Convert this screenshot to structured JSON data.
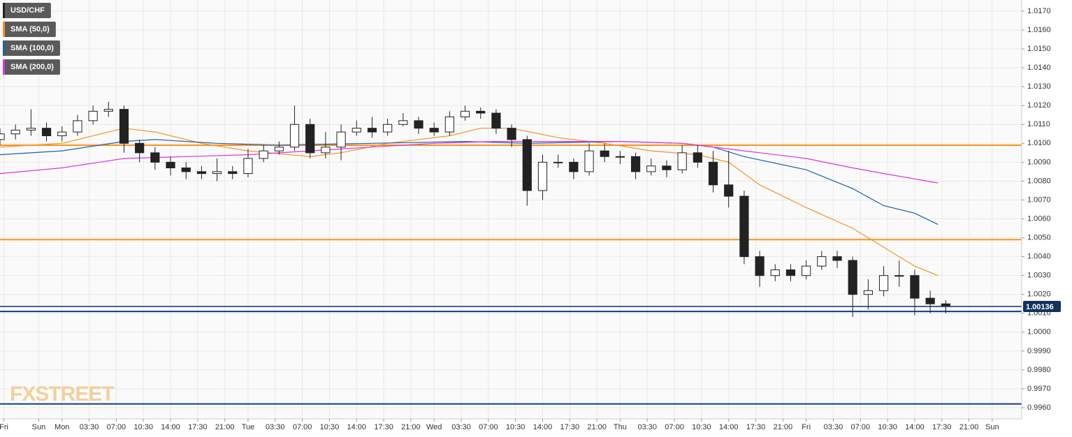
{
  "chart_data": {
    "type": "candlestick",
    "watermark": "FXSTREET",
    "xlim": [
      0,
      131.8
    ],
    "ylim": [
      0.99541,
      1.01759
    ],
    "grid": true,
    "xticks": [
      {
        "value": 0.5,
        "label": "Fri"
      },
      {
        "value": 5,
        "label": "Sun"
      },
      {
        "value": 8,
        "label": "Mon"
      },
      {
        "value": 11.5,
        "label": "03:30"
      },
      {
        "value": 15,
        "label": "07:00"
      },
      {
        "value": 18.5,
        "label": "10:30"
      },
      {
        "value": 22,
        "label": "14:00"
      },
      {
        "value": 25.5,
        "label": "17:30"
      },
      {
        "value": 29,
        "label": "21:00"
      },
      {
        "value": 32,
        "label": "Tue"
      },
      {
        "value": 35.5,
        "label": "03:30"
      },
      {
        "value": 39,
        "label": "07:00"
      },
      {
        "value": 42.5,
        "label": "10:30"
      },
      {
        "value": 46,
        "label": "14:00"
      },
      {
        "value": 49.5,
        "label": "17:30"
      },
      {
        "value": 53,
        "label": "21:00"
      },
      {
        "value": 56,
        "label": "Wed"
      },
      {
        "value": 59.5,
        "label": "03:30"
      },
      {
        "value": 63,
        "label": "07:00"
      },
      {
        "value": 66.5,
        "label": "10:30"
      },
      {
        "value": 70,
        "label": "14:00"
      },
      {
        "value": 73.5,
        "label": "17:30"
      },
      {
        "value": 77,
        "label": "21:00"
      },
      {
        "value": 80,
        "label": "Thu"
      },
      {
        "value": 83.5,
        "label": "03:30"
      },
      {
        "value": 87,
        "label": "07:00"
      },
      {
        "value": 90.5,
        "label": "10:30"
      },
      {
        "value": 94,
        "label": "14:00"
      },
      {
        "value": 97.5,
        "label": "17:30"
      },
      {
        "value": 101,
        "label": "21:00"
      },
      {
        "value": 104,
        "label": "Fri"
      },
      {
        "value": 107.5,
        "label": "03:30"
      },
      {
        "value": 111,
        "label": "07:00"
      },
      {
        "value": 114.5,
        "label": "10:30"
      },
      {
        "value": 118,
        "label": "14:00"
      },
      {
        "value": 121.5,
        "label": "17:30"
      },
      {
        "value": 125,
        "label": "21:00"
      },
      {
        "value": 128,
        "label": "Sun"
      }
    ],
    "yticks": [
      {
        "value": 0.996,
        "label": "0.9960"
      },
      {
        "value": 0.997,
        "label": "0.9970"
      },
      {
        "value": 0.998,
        "label": "0.9980"
      },
      {
        "value": 0.999,
        "label": "0.9990"
      },
      {
        "value": 1.0,
        "label": "1.0000"
      },
      {
        "value": 1.001,
        "label": "1.0010"
      },
      {
        "value": 1.002,
        "label": "1.0020"
      },
      {
        "value": 1.003,
        "label": "1.0030"
      },
      {
        "value": 1.004,
        "label": "1.0040"
      },
      {
        "value": 1.005,
        "label": "1.0050"
      },
      {
        "value": 1.006,
        "label": "1.0060"
      },
      {
        "value": 1.007,
        "label": "1.0070"
      },
      {
        "value": 1.008,
        "label": "1.0080"
      },
      {
        "value": 1.009,
        "label": "1.0090"
      },
      {
        "value": 1.01,
        "label": "1.0100"
      },
      {
        "value": 1.011,
        "label": "1.0110"
      },
      {
        "value": 1.012,
        "label": "1.0120"
      },
      {
        "value": 1.013,
        "label": "1.0130"
      },
      {
        "value": 1.014,
        "label": "1.0140"
      },
      {
        "value": 1.015,
        "label": "1.0150"
      },
      {
        "value": 1.016,
        "label": "1.0160"
      },
      {
        "value": 1.017,
        "label": "1.0170"
      }
    ],
    "candles": {
      "name": "USD/CHF",
      "color": "#222222",
      "up_color": "#ffffff",
      "x": [
        0,
        2,
        4,
        6,
        8,
        10,
        12,
        14,
        16,
        18,
        20,
        22,
        24,
        26,
        28,
        30,
        32,
        34,
        36,
        38,
        40,
        42,
        44,
        46,
        48,
        50,
        52,
        54,
        56,
        58,
        60,
        62,
        64,
        66,
        68,
        70,
        72,
        74,
        76,
        78,
        80,
        82,
        84,
        86,
        88,
        90,
        92,
        94,
        96,
        98,
        100,
        102,
        104,
        106,
        108,
        110,
        112,
        114,
        116,
        118,
        120,
        122
      ],
      "open": [
        1.0102,
        1.0105,
        1.0107,
        1.0108,
        1.0104,
        1.0106,
        1.0112,
        1.0117,
        1.0118,
        1.01,
        1.0095,
        1.009,
        1.0087,
        1.0085,
        1.0084,
        1.0085,
        1.0084,
        1.0092,
        1.0096,
        1.0098,
        1.011,
        1.0095,
        1.0098,
        1.0106,
        1.0108,
        1.0106,
        1.011,
        1.0112,
        1.0108,
        1.0106,
        1.0114,
        1.0117,
        1.0116,
        1.0108,
        1.0102,
        1.0075,
        1.009,
        1.009,
        1.0085,
        1.0096,
        1.0093,
        1.0093,
        1.0085,
        1.0088,
        1.0086,
        1.0095,
        1.009,
        1.0078,
        1.0072,
        1.004,
        1.003,
        1.0033,
        1.003,
        1.0035,
        1.004,
        1.0038,
        1.002,
        1.0022,
        1.003,
        1.003,
        1.0018,
        1.0015
      ],
      "high": [
        1.0108,
        1.011,
        1.0118,
        1.0111,
        1.0109,
        1.0115,
        1.012,
        1.0122,
        1.012,
        1.0102,
        1.0098,
        1.0093,
        1.009,
        1.0088,
        1.0092,
        1.0088,
        1.0097,
        1.0099,
        1.0101,
        1.012,
        1.0113,
        1.0106,
        1.011,
        1.0112,
        1.0114,
        1.0113,
        1.0116,
        1.0114,
        1.0111,
        1.0117,
        1.012,
        1.0119,
        1.0118,
        1.011,
        1.0104,
        1.0094,
        1.0094,
        1.0092,
        1.01,
        1.01,
        1.0096,
        1.0095,
        1.0092,
        1.0091,
        1.0099,
        1.0099,
        1.0096,
        1.0096,
        1.0075,
        1.0043,
        1.0036,
        1.0036,
        1.0038,
        1.0043,
        1.0043,
        1.004,
        1.0028,
        1.0035,
        1.0038,
        1.0033,
        1.0022,
        1.0017
      ],
      "low": [
        1.0099,
        1.0102,
        1.0104,
        1.0101,
        1.0101,
        1.0104,
        1.011,
        1.0114,
        1.0095,
        1.009,
        1.0086,
        1.0083,
        1.0081,
        1.0081,
        1.008,
        1.0081,
        1.0082,
        1.009,
        1.0094,
        1.0096,
        1.0092,
        1.0092,
        1.0091,
        1.0104,
        1.0103,
        1.0104,
        1.0109,
        1.0105,
        1.0104,
        1.0104,
        1.0112,
        1.0113,
        1.0105,
        1.0098,
        1.0067,
        1.007,
        1.0087,
        1.0081,
        1.0083,
        1.009,
        1.0089,
        1.0081,
        1.0083,
        1.0082,
        1.0084,
        1.0087,
        1.0074,
        1.0066,
        1.0036,
        1.0024,
        1.0027,
        1.0027,
        1.0028,
        1.0033,
        1.0034,
        1.0008,
        1.0012,
        1.0019,
        1.0024,
        1.0009,
        1.001,
        1.001
      ],
      "close": [
        1.0105,
        1.0107,
        1.0108,
        1.0104,
        1.0106,
        1.0112,
        1.0117,
        1.0118,
        1.01,
        1.0095,
        1.009,
        1.0087,
        1.0085,
        1.0084,
        1.0085,
        1.0084,
        1.0092,
        1.0096,
        1.0098,
        1.011,
        1.0095,
        1.0098,
        1.0106,
        1.0108,
        1.0106,
        1.011,
        1.0112,
        1.0108,
        1.0106,
        1.0114,
        1.0117,
        1.0116,
        1.0108,
        1.0102,
        1.0075,
        1.009,
        1.009,
        1.0085,
        1.0096,
        1.0093,
        1.0093,
        1.0085,
        1.0088,
        1.0086,
        1.0095,
        1.009,
        1.0078,
        1.0072,
        1.004,
        1.003,
        1.0033,
        1.003,
        1.0035,
        1.004,
        1.0038,
        1.002,
        1.0022,
        1.003,
        1.003,
        1.0018,
        1.0015,
        1.0014
      ]
    },
    "series": [
      {
        "name": "SMA (50,0)",
        "color": "#f7931e",
        "x": [
          0,
          8,
          14,
          16,
          20,
          26,
          32,
          40,
          44,
          50,
          58,
          62,
          66,
          72,
          78,
          84,
          90,
          94,
          98,
          104,
          110,
          114,
          118,
          121
        ],
        "values": [
          1.0098,
          1.01,
          1.0106,
          1.0108,
          1.0106,
          1.01,
          1.0096,
          1.0093,
          1.0095,
          1.01,
          1.0104,
          1.0108,
          1.0108,
          1.0103,
          1.01,
          1.0096,
          1.0094,
          1.009,
          1.0078,
          1.0066,
          1.0055,
          1.0045,
          1.0035,
          1.003
        ]
      },
      {
        "name": "SMA (100,0)",
        "color": "#1f5fa8",
        "x": [
          0,
          8,
          16,
          20,
          28,
          36,
          48,
          60,
          68,
          80,
          88,
          92,
          96,
          104,
          110,
          114,
          118,
          121
        ],
        "values": [
          1.0094,
          1.0096,
          1.0101,
          1.0102,
          1.01,
          1.0099,
          1.01,
          1.0101,
          1.01,
          1.0101,
          1.01,
          1.0098,
          1.0093,
          1.0086,
          1.0076,
          1.0067,
          1.0063,
          1.0057
        ]
      },
      {
        "name": "SMA (200,0)",
        "color": "#e033e0",
        "x": [
          0,
          8,
          16,
          24,
          32,
          40,
          48,
          56,
          64,
          72,
          80,
          88,
          94,
          104,
          110,
          114,
          121
        ],
        "values": [
          1.0084,
          1.0087,
          1.0092,
          1.0093,
          1.0094,
          1.0096,
          1.0098,
          1.01,
          1.0101,
          1.0101,
          1.0101,
          1.01,
          1.0097,
          1.0092,
          1.0087,
          1.0084,
          1.0079
        ]
      }
    ],
    "hlines": [
      {
        "value": 1.0099,
        "color": "#f7931e"
      },
      {
        "value": 1.0049,
        "color": "#f7931e"
      },
      {
        "value": 1.0011,
        "color": "#0b3d91"
      },
      {
        "value": 0.9962,
        "color": "#0b3d91"
      }
    ],
    "price_label": 1.00136,
    "price_color": "#12315e"
  }
}
